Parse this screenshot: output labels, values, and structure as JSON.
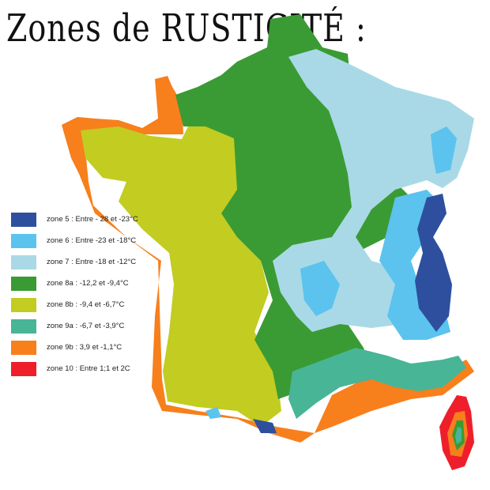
{
  "title": "Zones de RUSTICITÉ :",
  "colors": {
    "zone5": "#2e4f9e",
    "zone6": "#5bc3ee",
    "zone7": "#a9d9e6",
    "zone8a": "#3a9b34",
    "zone8b": "#c2cc21",
    "zone9a": "#47b596",
    "zone9b": "#f77f1c",
    "zone10": "#ee1f2a"
  },
  "legend": [
    {
      "label": "zone 5  : Entre - 28 et -23°C",
      "color": "#2e4f9e"
    },
    {
      "label": "zone 6  : Entre -23 et -18°C",
      "color": "#5bc3ee"
    },
    {
      "label": "zone 7  : Entre -18 et -12°C",
      "color": "#a9d9e6"
    },
    {
      "label": "zone 8a : -12,2 et -9,4°C",
      "color": "#3a9b34"
    },
    {
      "label": "zone 8b : -9,4 et -6,7°C",
      "color": "#c2cc21"
    },
    {
      "label": "zone 9a : -6,7 et -3,9°C",
      "color": "#47b596"
    },
    {
      "label": "zone 9b : 3,9 et -1,1°C",
      "color": "#f77f1c"
    },
    {
      "label": "zone 10 : Entre 1;1 et 2C",
      "color": "#ee1f2a"
    }
  ]
}
